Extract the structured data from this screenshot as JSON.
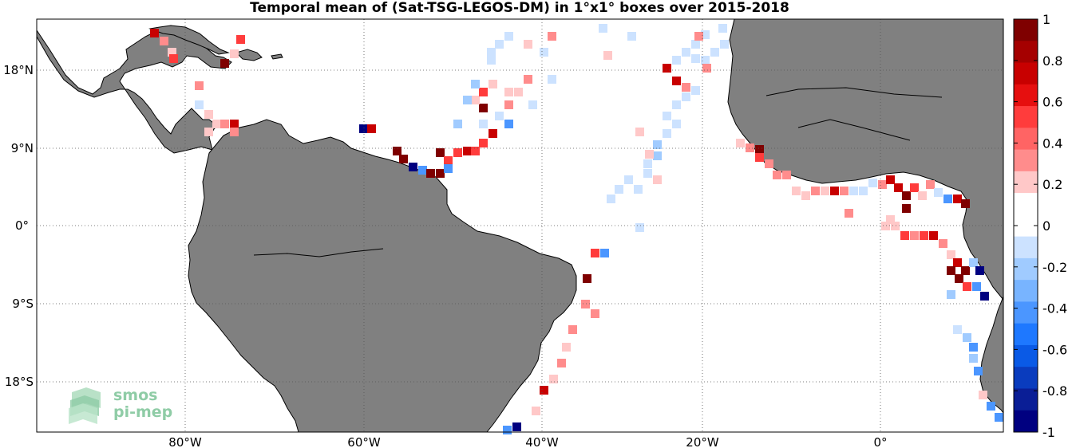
{
  "title": "Temporal mean of (Sat-TSG-LEGOS-DM) in 1°x1° boxes over 2015-2018",
  "x_tick_labels": [
    "80°W",
    "60°W",
    "40°W",
    "20°W",
    "0°"
  ],
  "y_tick_labels": [
    "18°N",
    "9°N",
    "0°",
    "9°S",
    "18°S"
  ],
  "colorbar": {
    "tick_labels": [
      "1",
      "0.8",
      "0.6",
      "0.4",
      "0.2",
      "0",
      "-0.2",
      "-0.4",
      "-0.6",
      "-0.8",
      "-1"
    ],
    "colors": [
      "#7f0000",
      "#a50000",
      "#c80000",
      "#e60f0f",
      "#ff3c3c",
      "#ff6464",
      "#ff8c8c",
      "#ffc8c8",
      "#ffffff",
      "#ffffff",
      "#cce2ff",
      "#a0cbff",
      "#78b4ff",
      "#4b96ff",
      "#1e78ff",
      "#0a5ae6",
      "#0a3cbe",
      "#0a1e96",
      "#000080"
    ]
  },
  "logo": {
    "line1": "smos",
    "line2": "pi-mep"
  },
  "colors": {
    "land": "#808080",
    "grid": "#555555"
  }
}
